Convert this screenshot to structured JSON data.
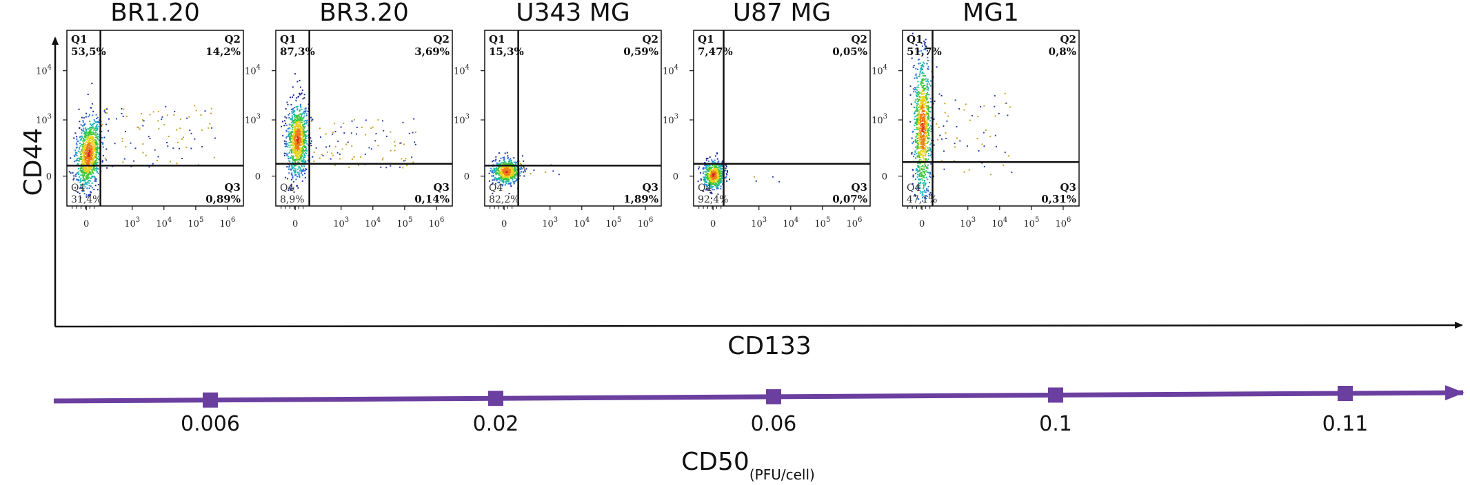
{
  "figure": {
    "y_axis_title": "CD44",
    "x_axis_title": "CD133",
    "cd50_title": "CD50",
    "cd50_unit": "(PFU/cell)"
  },
  "chart_data": {
    "type": "scatter",
    "x_tick_labels": [
      "0",
      "10",
      "10",
      "10",
      "10"
    ],
    "x_tick_exponents": [
      "",
      "3",
      "4",
      "5",
      "6"
    ],
    "y_tick_labels": [
      "0",
      "10",
      "10"
    ],
    "y_tick_exponents": [
      "",
      "3",
      "4"
    ],
    "panels": [
      {
        "title": "BR1.20",
        "q1": "53,5%",
        "q2": "14,2%",
        "q3": "0,89%",
        "q4": "31,4%"
      },
      {
        "title": "BR3.20",
        "q1": "87,3%",
        "q2": "3,69%",
        "q3": "0,14%",
        "q4": "8,9%"
      },
      {
        "title": "U343 MG",
        "q1": "15,3%",
        "q2": "0,59%",
        "q3": "1,89%",
        "q4": "82,2%"
      },
      {
        "title": "U87 MG",
        "q1": "7,47%",
        "q2": "0,05%",
        "q3": "0,07%",
        "q4": "92,4%"
      },
      {
        "title": "MG1",
        "q1": "51,7%",
        "q2": "0,8%",
        "q3": "0,31%",
        "q4": "47,1%"
      }
    ],
    "quadrant_names": [
      "Q1",
      "Q2",
      "Q3",
      "Q4"
    ],
    "cd50": {
      "labels": [
        "0.006",
        "0.02",
        "0.06",
        "0.1",
        "0.11"
      ],
      "values": [
        0.006,
        0.02,
        0.06,
        0.1,
        0.11
      ]
    },
    "colors": {
      "arrow": "#6b3fa0",
      "marker": "#6b3fa0",
      "density": [
        "#1a2a9c",
        "#2a6fd6",
        "#1fb5b0",
        "#3fc43a",
        "#e8d21a",
        "#f07a16",
        "#d6201c"
      ]
    }
  }
}
